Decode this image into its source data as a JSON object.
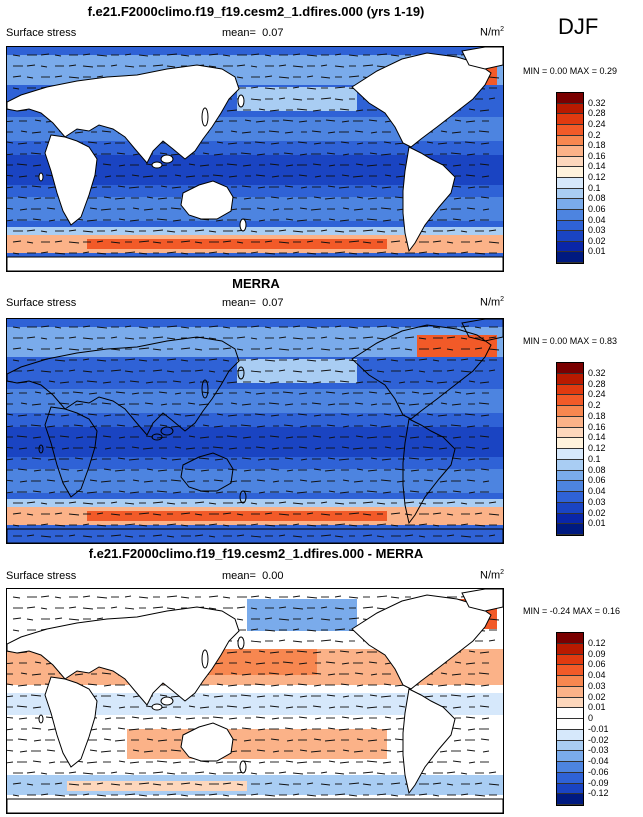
{
  "season": "DJF",
  "panels": [
    {
      "title": "f.e21.F2000climo.f19_f19.cesm2_1.dfires.000 (yrs 1-19)",
      "field": "Surface stress",
      "mean_label": "mean=",
      "mean": "0.07",
      "units_base": "N/m",
      "units_exp": "2",
      "minmax": "MIN =  0.00 MAX =  0.29",
      "levels": [
        "0.32",
        "0.28",
        "0.24",
        "0.2",
        "0.18",
        "0.16",
        "0.14",
        "0.12",
        "0.1",
        "0.08",
        "0.06",
        "0.04",
        "0.03",
        "0.02",
        "0.01"
      ],
      "colors": [
        "#7a0000",
        "#b81a00",
        "#e03a10",
        "#f25a28",
        "#f78750",
        "#fbb288",
        "#fdd7bc",
        "#fff2dc",
        "#d6e8fb",
        "#a9cdf3",
        "#7aabeb",
        "#4d84e0",
        "#2f62d6",
        "#1a44c2",
        "#0a26a8",
        "#001a80"
      ]
    },
    {
      "title": "MERRA",
      "field": "Surface stress",
      "mean_label": "mean=",
      "mean": "0.07",
      "units_base": "N/m",
      "units_exp": "2",
      "minmax": "MIN =  0.00 MAX =  0.83",
      "levels": [
        "0.32",
        "0.28",
        "0.24",
        "0.2",
        "0.18",
        "0.16",
        "0.14",
        "0.12",
        "0.1",
        "0.08",
        "0.06",
        "0.04",
        "0.03",
        "0.02",
        "0.01"
      ],
      "colors": [
        "#7a0000",
        "#b81a00",
        "#e03a10",
        "#f25a28",
        "#f78750",
        "#fbb288",
        "#fdd7bc",
        "#fff2dc",
        "#d6e8fb",
        "#a9cdf3",
        "#7aabeb",
        "#4d84e0",
        "#2f62d6",
        "#1a44c2",
        "#0a26a8",
        "#001a80"
      ]
    },
    {
      "title": "f.e21.F2000climo.f19_f19.cesm2_1.dfires.000 - MERRA",
      "field": "Surface stress",
      "mean_label": "mean=",
      "mean": "0.00",
      "units_base": "N/m",
      "units_exp": "2",
      "minmax": "MIN = -0.24 MAX =  0.16",
      "levels": [
        "0.12",
        "0.09",
        "0.06",
        "0.04",
        "0.03",
        "0.02",
        "0.01",
        "0",
        "-0.01",
        "-0.02",
        "-0.03",
        "-0.04",
        "-0.06",
        "-0.09",
        "-0.12"
      ],
      "colors": [
        "#7a0000",
        "#b81a00",
        "#e03a10",
        "#f25a28",
        "#f78750",
        "#fbb288",
        "#fdd7bc",
        "#ffffff",
        "#ffffff",
        "#d6e8fb",
        "#a9cdf3",
        "#7aabeb",
        "#4d84e0",
        "#2f62d6",
        "#1a44c2",
        "#001a80"
      ]
    }
  ],
  "chart_data": [
    {
      "type": "heatmap",
      "title": "f.e21.F2000climo.f19_f19.cesm2_1.dfires.000 (yrs 1-19)",
      "subtitle": "Surface stress",
      "mean": 0.07,
      "units": "N/m2",
      "min": 0.0,
      "max": 0.29,
      "levels": [
        0.32,
        0.28,
        0.24,
        0.2,
        0.18,
        0.16,
        0.14,
        0.12,
        0.1,
        0.08,
        0.06,
        0.04,
        0.03,
        0.02,
        0.01
      ]
    },
    {
      "type": "heatmap",
      "title": "MERRA",
      "subtitle": "Surface stress",
      "mean": 0.07,
      "units": "N/m2",
      "min": 0.0,
      "max": 0.83,
      "levels": [
        0.32,
        0.28,
        0.24,
        0.2,
        0.18,
        0.16,
        0.14,
        0.12,
        0.1,
        0.08,
        0.06,
        0.04,
        0.03,
        0.02,
        0.01
      ]
    },
    {
      "type": "heatmap",
      "title": "f.e21.F2000climo.f19_f19.cesm2_1.dfires.000 - MERRA",
      "subtitle": "Surface stress",
      "mean": 0.0,
      "units": "N/m2",
      "min": -0.24,
      "max": 0.16,
      "levels": [
        0.12,
        0.09,
        0.06,
        0.04,
        0.03,
        0.02,
        0.01,
        0,
        -0.01,
        -0.02,
        -0.03,
        -0.04,
        -0.06,
        -0.09,
        -0.12
      ]
    }
  ]
}
